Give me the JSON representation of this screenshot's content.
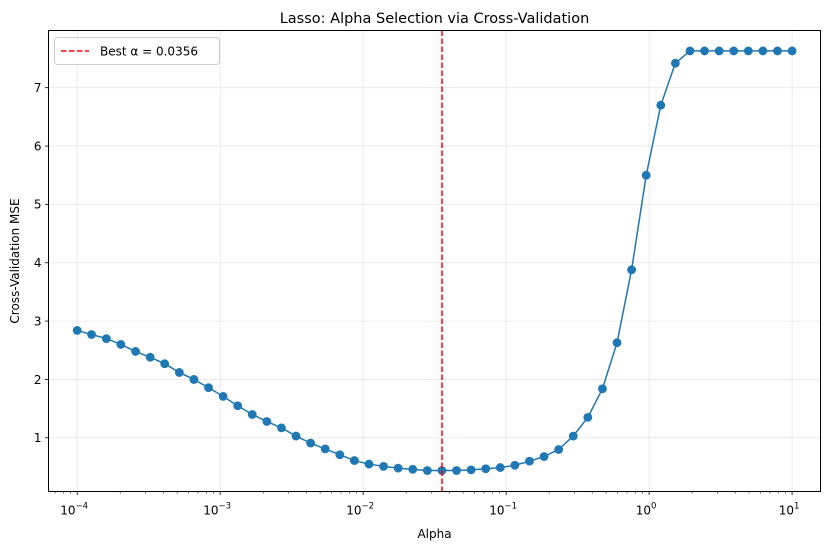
{
  "chart_data": {
    "type": "line",
    "title": "Lasso: Alpha Selection via Cross-Validation",
    "xlabel": "Alpha",
    "ylabel": "Cross-Validation MSE",
    "xscale": "log",
    "xlim": [
      6.3e-05,
      15.8
    ],
    "ylim": [
      0.08,
      7.98
    ],
    "grid": true,
    "legend": "top-left",
    "x_tick_values": [
      0.0001,
      0.001,
      0.01,
      0.1,
      1,
      10
    ],
    "x_tick_labels": [
      {
        "base": "10",
        "exp": "−4"
      },
      {
        "base": "10",
        "exp": "−3"
      },
      {
        "base": "10",
        "exp": "−2"
      },
      {
        "base": "10",
        "exp": "−1"
      },
      {
        "base": "10",
        "exp": "0"
      },
      {
        "base": "10",
        "exp": "1"
      }
    ],
    "y_ticks": [
      1,
      2,
      3,
      4,
      5,
      6,
      7
    ],
    "y_tick_labels": [
      "1",
      "2",
      "3",
      "4",
      "5",
      "6",
      "7"
    ],
    "series": [
      {
        "color": "#1f77b4",
        "x": [
          0.0001,
          0.000126,
          0.00016,
          0.000202,
          0.000256,
          0.000324,
          0.000409,
          0.000518,
          0.000655,
          0.000829,
          0.001048,
          0.001326,
          0.001677,
          0.002121,
          0.002683,
          0.003393,
          0.004292,
          0.005429,
          0.006866,
          0.008685,
          0.010985,
          0.013895,
          0.017575,
          0.02223,
          0.028118,
          0.035565,
          0.044984,
          0.056899,
          0.071969,
          0.09103,
          0.11514,
          0.145635,
          0.184207,
          0.232995,
          0.294705,
          0.372759,
          0.471487,
          0.596362,
          0.754312,
          0.954095,
          1.206793,
          1.526418,
          1.930698,
          2.442053,
          3.088844,
          3.90694,
          4.941713,
          6.250552,
          7.906043,
          10.0
        ],
        "y": [
          2.84,
          2.77,
          2.7,
          2.6,
          2.48,
          2.38,
          2.27,
          2.12,
          2.0,
          1.86,
          1.71,
          1.55,
          1.4,
          1.28,
          1.17,
          1.03,
          0.91,
          0.81,
          0.71,
          0.61,
          0.55,
          0.51,
          0.48,
          0.46,
          0.44,
          0.44,
          0.44,
          0.45,
          0.47,
          0.49,
          0.53,
          0.6,
          0.68,
          0.8,
          1.03,
          1.35,
          1.84,
          2.63,
          3.88,
          5.5,
          6.7,
          7.42,
          7.63,
          7.63,
          7.63,
          7.63,
          7.63,
          7.63,
          7.63,
          7.63
        ]
      }
    ],
    "reference_line": {
      "x": 0.0356,
      "color": "#ff0000",
      "style": "dashed",
      "label": "Best α = 0.0356"
    }
  }
}
